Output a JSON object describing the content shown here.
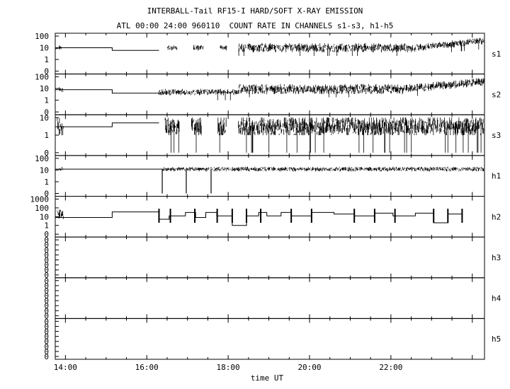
{
  "title": "INTERBALL-Tail RF15-I HARD/SOFT X-RAY EMISSION",
  "subtitle": "ATL 00:00 24:00 960110  COUNT RATE IN CHANNELS s1-s3, h1-h5",
  "xlabel": "time UT",
  "colors": {
    "background": "#ffffff",
    "ink": "#000000"
  },
  "chart_data": {
    "type": "line",
    "title": "INTERBALL-Tail RF15-I HARD/SOFT X-RAY EMISSION",
    "subtitle": "ATL 00:00 24:00 960110  COUNT RATE IN CHANNELS s1-s3, h1-h5",
    "xlabel": "time UT",
    "xlim": [
      13.75,
      24.3
    ],
    "x_ticks": [
      "14:00",
      "16:00",
      "18:00",
      "20:00",
      "22:00"
    ],
    "x_tick_values": [
      14,
      16,
      18,
      20,
      22
    ],
    "grid": false,
    "panels": [
      {
        "name": "s1",
        "y_ticks": [
          "100",
          "10",
          "1",
          "0"
        ],
        "y_scale": "log",
        "segments": [
          {
            "kind": "step",
            "points": [
              [
                13.75,
                8
              ],
              [
                13.85,
                10
              ],
              [
                15.15,
                10
              ],
              [
                15.15,
                6
              ],
              [
                16.3,
                6
              ]
            ]
          },
          {
            "kind": "noise",
            "x": [
              13.85,
              13.9
            ],
            "level": 10,
            "spread": 0.3
          },
          {
            "kind": "noise",
            "x": [
              16.5,
              16.75
            ],
            "level": 10,
            "spread": 0.3
          },
          {
            "kind": "noise",
            "x": [
              17.15,
              17.4
            ],
            "level": 10,
            "spread": 0.3
          },
          {
            "kind": "noise",
            "x": [
              17.8,
              17.97
            ],
            "level": 10,
            "spread": 0.3
          },
          {
            "kind": "noise",
            "x": [
              18.25,
              22.6
            ],
            "level": 10,
            "spread": 0.5
          },
          {
            "kind": "ramp",
            "x": [
              22.6,
              24.3
            ],
            "from": 10,
            "to": 40,
            "spread": 0.4
          }
        ]
      },
      {
        "name": "s2",
        "y_ticks": [
          "100",
          "10",
          "1",
          "0"
        ],
        "y_scale": "log",
        "segments": [
          {
            "kind": "step",
            "points": [
              [
                13.75,
                8
              ],
              [
                15.15,
                8
              ],
              [
                15.15,
                4
              ],
              [
                16.3,
                4
              ]
            ]
          },
          {
            "kind": "noise",
            "x": [
              13.85,
              13.95
            ],
            "level": 8,
            "spread": 0.3
          },
          {
            "kind": "noise",
            "x": [
              16.3,
              18.25
            ],
            "level": 5,
            "spread": 0.35
          },
          {
            "kind": "noise",
            "x": [
              18.25,
              22.3
            ],
            "level": 9,
            "spread": 0.55
          },
          {
            "kind": "ramp",
            "x": [
              22.3,
              24.3
            ],
            "from": 9,
            "to": 40,
            "spread": 0.45
          }
        ]
      },
      {
        "name": "s3",
        "y_ticks": [
          "10",
          "1",
          "0"
        ],
        "y_scale": "log",
        "segments": [
          {
            "kind": "step",
            "points": [
              [
                13.75,
                3
              ],
              [
                15.15,
                3
              ],
              [
                15.15,
                5
              ],
              [
                16.3,
                5
              ]
            ]
          },
          {
            "kind": "noise",
            "x": [
              13.8,
              13.95
            ],
            "level": 3,
            "spread": 0.7
          },
          {
            "kind": "noise",
            "x": [
              16.45,
              16.8
            ],
            "level": 3,
            "spread": 0.8
          },
          {
            "kind": "noise",
            "x": [
              17.1,
              17.35
            ],
            "level": 3,
            "spread": 0.8
          },
          {
            "kind": "noise",
            "x": [
              17.75,
              17.95
            ],
            "level": 3,
            "spread": 0.8
          },
          {
            "kind": "noise",
            "x": [
              18.25,
              24.3
            ],
            "level": 3,
            "spread": 0.8
          }
        ]
      },
      {
        "name": "h1",
        "y_ticks": [
          "100",
          "10",
          "1",
          "0"
        ],
        "y_scale": "log",
        "segments": [
          {
            "kind": "step",
            "points": [
              [
                13.75,
                12
              ],
              [
                16.4,
                12
              ]
            ]
          },
          {
            "kind": "noise",
            "x": [
              13.85,
              13.95
            ],
            "level": 12,
            "spread": 0.25
          },
          {
            "kind": "noise",
            "x": [
              16.4,
              24.3
            ],
            "level": 12,
            "spread": 0.25
          },
          {
            "kind": "dip",
            "x": 16.38
          },
          {
            "kind": "dip",
            "x": 16.97
          },
          {
            "kind": "dip",
            "x": 17.58
          }
        ]
      },
      {
        "name": "h2",
        "y_ticks": [
          "1000",
          "100",
          "10",
          "1",
          "0"
        ],
        "y_scale": "log",
        "segments": [
          {
            "kind": "step",
            "points": [
              [
                13.75,
                8
              ],
              [
                15.15,
                8
              ],
              [
                15.15,
                35
              ],
              [
                16.3,
                35
              ],
              [
                16.3,
                5
              ],
              [
                16.55,
                5
              ],
              [
                16.55,
                12
              ],
              [
                16.95,
                12
              ],
              [
                16.95,
                30
              ],
              [
                17.2,
                30
              ],
              [
                17.2,
                8
              ],
              [
                17.45,
                8
              ],
              [
                17.45,
                30
              ],
              [
                17.72,
                30
              ],
              [
                17.72,
                12
              ],
              [
                18.1,
                12
              ],
              [
                18.1,
                1
              ],
              [
                18.45,
                1
              ],
              [
                18.45,
                12
              ],
              [
                18.75,
                12
              ],
              [
                18.75,
                30
              ],
              [
                18.95,
                30
              ],
              [
                18.95,
                12
              ],
              [
                19.3,
                12
              ],
              [
                19.3,
                30
              ],
              [
                19.55,
                30
              ],
              [
                19.55,
                12
              ],
              [
                20.05,
                12
              ],
              [
                20.05,
                30
              ],
              [
                20.6,
                30
              ],
              [
                20.6,
                20
              ],
              [
                21.1,
                20
              ],
              [
                21.1,
                12
              ],
              [
                21.6,
                12
              ],
              [
                21.6,
                25
              ],
              [
                22.05,
                25
              ],
              [
                22.05,
                12
              ],
              [
                22.6,
                12
              ],
              [
                22.6,
                25
              ],
              [
                23.05,
                25
              ],
              [
                23.05,
                2
              ],
              [
                23.4,
                2
              ],
              [
                23.4,
                20
              ],
              [
                23.75,
                20
              ]
            ]
          },
          {
            "kind": "noise",
            "x": [
              13.8,
              13.95
            ],
            "level": 20,
            "spread": 0.8
          },
          {
            "kind": "spike",
            "x": [
              16.3,
              16.58,
              17.18,
              17.73,
              18.1,
              18.45,
              18.8,
              19.55,
              20.05,
              21.1,
              21.6,
              22.1,
              23.05,
              23.4,
              23.75
            ]
          }
        ]
      },
      {
        "name": "h3",
        "y_ticks": [
          "0",
          "0",
          "0",
          "0",
          "0",
          "0",
          "0",
          "0"
        ],
        "y_scale": "log",
        "segments": []
      },
      {
        "name": "h4",
        "y_ticks": [
          "0",
          "0",
          "0",
          "0",
          "0",
          "0",
          "0",
          "0"
        ],
        "y_scale": "log",
        "segments": []
      },
      {
        "name": "h5",
        "y_ticks": [
          "0",
          "0",
          "0",
          "0",
          "0",
          "0",
          "0",
          "0"
        ],
        "y_scale": "log",
        "segments": []
      }
    ]
  }
}
